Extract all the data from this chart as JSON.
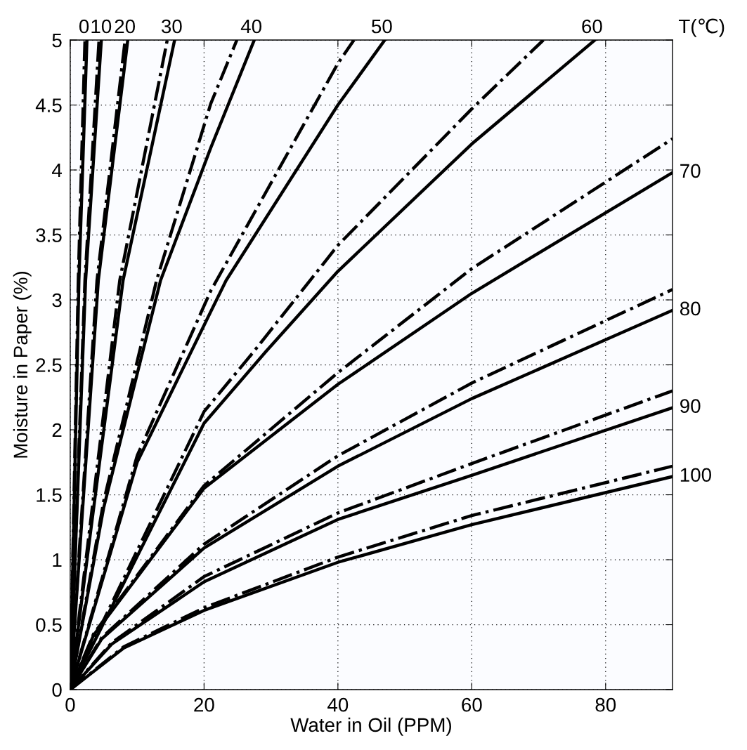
{
  "chart_data": {
    "type": "line",
    "xlabel": "Water in Oil (PPM)",
    "ylabel": "Moisture in Paper (%)",
    "xlim": [
      0,
      90
    ],
    "ylim": [
      0,
      5
    ],
    "xticks": [
      0,
      20,
      40,
      60,
      80
    ],
    "yticks": [
      0,
      0.5,
      1,
      1.5,
      2,
      2.5,
      3,
      3.5,
      4,
      4.5,
      5
    ],
    "grid": true,
    "marker": "none",
    "legend": "right",
    "series": [
      {
        "name": "0",
        "color": "#000000",
        "line_style": "solid",
        "x": [
          0,
          1.3,
          2.5
        ],
        "values": [
          0,
          3.15,
          5
        ]
      },
      {
        "color": "#000000",
        "line_style": "dashdot",
        "x": [
          0,
          1.2,
          2.2
        ],
        "values": [
          0,
          3.15,
          5
        ]
      },
      {
        "name": "10",
        "color": "#000000",
        "line_style": "solid",
        "x": [
          0,
          2.3,
          4.65
        ],
        "values": [
          0,
          3.15,
          5
        ]
      },
      {
        "color": "#000000",
        "line_style": "dashdot",
        "x": [
          0,
          2.2,
          4.3
        ],
        "values": [
          0,
          3.15,
          5
        ]
      },
      {
        "name": "20",
        "color": "#000000",
        "line_style": "solid",
        "x": [
          0,
          4.2,
          8.6
        ],
        "values": [
          0,
          3.15,
          5
        ]
      },
      {
        "color": "#000000",
        "line_style": "dashdot",
        "x": [
          0,
          4.0,
          8.2
        ],
        "values": [
          0,
          3.15,
          5
        ]
      },
      {
        "name": "30",
        "color": "#000000",
        "line_style": "solid",
        "x": [
          0,
          7.9,
          15.6
        ],
        "values": [
          0,
          3.15,
          5
        ]
      },
      {
        "color": "#000000",
        "line_style": "dashdot",
        "x": [
          0,
          7.4,
          14.5
        ],
        "values": [
          0,
          3.15,
          5
        ]
      },
      {
        "name": "40",
        "color": "#000000",
        "line_style": "solid",
        "x": [
          0,
          5,
          13.5,
          21,
          27.5
        ],
        "values": [
          0,
          1.4,
          3.15,
          4.17,
          5
        ]
      },
      {
        "color": "#000000",
        "line_style": "dashdot",
        "x": [
          0,
          5,
          12.9,
          21,
          24.9
        ],
        "values": [
          0,
          1.45,
          3.15,
          4.51,
          5
        ]
      },
      {
        "name": "50",
        "color": "#000000",
        "line_style": "solid",
        "x": [
          0,
          10,
          21,
          23.3,
          40,
          47
        ],
        "values": [
          0,
          1.75,
          2.91,
          3.15,
          4.5,
          5
        ]
      },
      {
        "color": "#000000",
        "line_style": "dashdot",
        "x": [
          0,
          10,
          21,
          40,
          42.4
        ],
        "values": [
          0,
          1.8,
          3.07,
          4.82,
          5
        ]
      },
      {
        "name": "60",
        "color": "#000000",
        "line_style": "solid",
        "x": [
          0,
          20,
          29.2,
          40,
          60,
          78.4
        ],
        "values": [
          0,
          2.05,
          2.6,
          3.22,
          4.2,
          5
        ]
      },
      {
        "color": "#000000",
        "line_style": "dashdot",
        "x": [
          0,
          20,
          27.4,
          40,
          60,
          70.7
        ],
        "values": [
          0,
          2.14,
          2.6,
          3.42,
          4.47,
          5
        ]
      },
      {
        "name": "70",
        "color": "#000000",
        "line_style": "solid",
        "x": [
          0,
          3.5,
          20,
          40,
          60,
          90
        ],
        "values": [
          0,
          0.42,
          1.55,
          2.35,
          3.05,
          3.98
        ]
      },
      {
        "color": "#000000",
        "line_style": "dashdot",
        "x": [
          0,
          3.5,
          20,
          40,
          60,
          90
        ],
        "values": [
          0,
          0.43,
          1.57,
          2.44,
          3.24,
          4.24
        ]
      },
      {
        "name": "80",
        "color": "#000000",
        "line_style": "solid",
        "x": [
          0,
          4.7,
          20,
          40,
          60,
          90
        ],
        "values": [
          0,
          0.39,
          1.09,
          1.72,
          2.24,
          2.92
        ]
      },
      {
        "color": "#000000",
        "line_style": "dashdot",
        "x": [
          0,
          4.7,
          20,
          40,
          60,
          90
        ],
        "values": [
          0,
          0.4,
          1.12,
          1.8,
          2.36,
          3.08
        ]
      },
      {
        "name": "90",
        "color": "#000000",
        "line_style": "solid",
        "x": [
          0,
          6.2,
          20,
          40,
          60,
          90
        ],
        "values": [
          0,
          0.35,
          0.83,
          1.31,
          1.65,
          2.17
        ]
      },
      {
        "color": "#000000",
        "line_style": "dashdot",
        "x": [
          0,
          6.2,
          20,
          40,
          60,
          90
        ],
        "values": [
          0,
          0.36,
          0.87,
          1.36,
          1.74,
          2.3
        ]
      },
      {
        "name": "100",
        "color": "#000000",
        "line_style": "solid",
        "x": [
          0,
          8,
          20,
          40,
          60,
          90
        ],
        "values": [
          0,
          0.32,
          0.61,
          0.98,
          1.27,
          1.64
        ]
      },
      {
        "color": "#000000",
        "line_style": "dashdot",
        "x": [
          0,
          8,
          20,
          40,
          60,
          90
        ],
        "values": [
          0,
          0.33,
          0.63,
          1.02,
          1.34,
          1.72
        ]
      }
    ],
    "annotations": [
      "T(℃)"
    ]
  }
}
